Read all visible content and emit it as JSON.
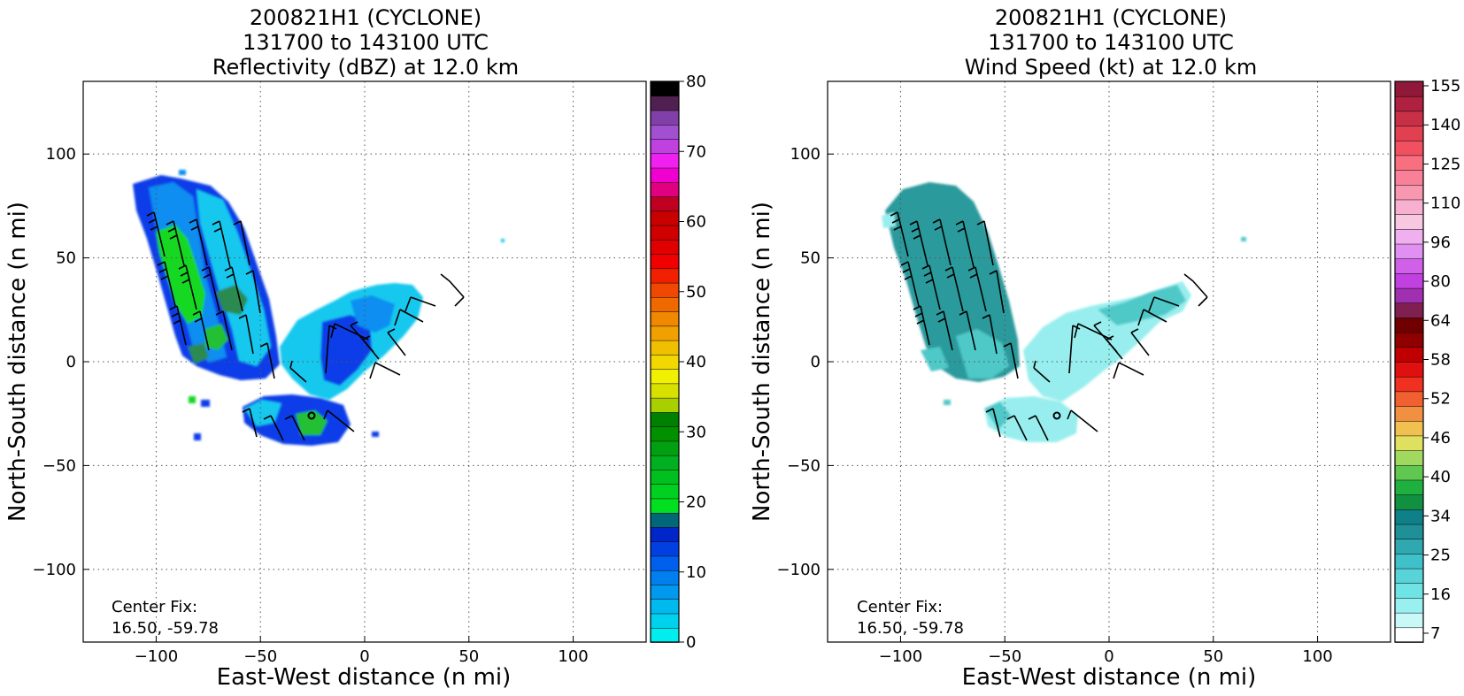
{
  "panels": [
    {
      "title_lines": [
        "200821H1 (CYCLONE)",
        "131700 to 143100 UTC",
        "Reflectivity (dBZ) at 12.0 km"
      ],
      "center_fix_label": "Center Fix:",
      "center_fix_value": "16.50, -59.78",
      "colorbar_ticks": [
        "0",
        "10",
        "20",
        "30",
        "40",
        "50",
        "60",
        "70",
        "80"
      ],
      "colorbar_colors": [
        "#00eeee",
        "#00d2ee",
        "#00b9ee",
        "#0099ee",
        "#0080ee",
        "#0060ee",
        "#0040e0",
        "#0025c8",
        "#006878",
        "#00e020",
        "#00d020",
        "#00c020",
        "#00b020",
        "#00a010",
        "#009000",
        "#008000",
        "#a8d000",
        "#d8e000",
        "#f0f000",
        "#f0d800",
        "#f0c000",
        "#f0a000",
        "#f08800",
        "#f06800",
        "#f04800",
        "#f02000",
        "#f00000",
        "#e00000",
        "#d00000",
        "#c80000",
        "#c00020",
        "#e00080",
        "#f000d0",
        "#f020f0",
        "#c040e0",
        "#a050d0",
        "#8040a8",
        "#502050",
        "#000000"
      ]
    },
    {
      "title_lines": [
        "200821H1 (CYCLONE)",
        "131700 to 143100 UTC",
        "Wind Speed (kt) at 12.0 km"
      ],
      "center_fix_label": "Center Fix:",
      "center_fix_value": "16.50, -59.78",
      "colorbar_ticks": [
        "7",
        "16",
        "25",
        "34",
        "40",
        "46",
        "52",
        "58",
        "64",
        "80",
        "96",
        "110",
        "125",
        "140",
        "155"
      ],
      "colorbar_colors": [
        "#ffffff",
        "#c8f8f8",
        "#98f0f0",
        "#70e4e4",
        "#58d4d8",
        "#40c0c8",
        "#30a8b0",
        "#209098",
        "#108088",
        "#109040",
        "#20b040",
        "#60c850",
        "#a0d860",
        "#e0e060",
        "#f0c050",
        "#f09040",
        "#f06030",
        "#f03020",
        "#e01010",
        "#c00000",
        "#900000",
        "#700000",
        "#802050",
        "#a030b0",
        "#c040e0",
        "#d060e8",
        "#e090f0",
        "#f0b0f0",
        "#f8c8e0",
        "#f8b0d0",
        "#f898b0",
        "#f88098",
        "#f87080",
        "#f05060",
        "#e04050",
        "#c83048",
        "#b02040",
        "#901838"
      ]
    }
  ],
  "chart_data": [
    {
      "type": "heatmap",
      "title": "200821H1 (CYCLONE)\n131700 to 143100 UTC\nReflectivity (dBZ) at 12.0 km",
      "xlabel": "East-West distance (n mi)",
      "ylabel": "North-South distance (n mi)",
      "xlim": [
        -135,
        135
      ],
      "ylim": [
        -135,
        135
      ],
      "xticks": [
        -100,
        -50,
        0,
        50,
        100
      ],
      "yticks": [
        -100,
        -50,
        0,
        50,
        100
      ],
      "grid": true,
      "colorbar": {
        "label": "dBZ",
        "min": 0,
        "max": 80,
        "ticks": [
          0,
          10,
          20,
          30,
          40,
          50,
          60,
          70,
          80
        ]
      },
      "annotation": "Center Fix:\n16.50, -59.78",
      "center_marker": [
        -25,
        -25
      ]
    },
    {
      "type": "heatmap",
      "title": "200821H1 (CYCLONE)\n131700 to 143100 UTC\nWind Speed (kt) at 12.0 km",
      "xlabel": "East-West distance (n mi)",
      "ylabel": "North-South distance (n mi)",
      "xlim": [
        -135,
        135
      ],
      "ylim": [
        -135,
        135
      ],
      "xticks": [
        -100,
        -50,
        0,
        50,
        100
      ],
      "yticks": [
        -100,
        -50,
        0,
        50,
        100
      ],
      "grid": true,
      "colorbar": {
        "label": "kt",
        "ticks": [
          7,
          16,
          25,
          34,
          40,
          46,
          52,
          58,
          64,
          80,
          96,
          110,
          125,
          140,
          155
        ]
      },
      "annotation": "Center Fix:\n16.50, -59.78",
      "center_marker": [
        -25,
        -25
      ]
    }
  ],
  "axis_text": {
    "xlabel": "East-West distance (n mi)",
    "ylabel": "North-South distance (n mi)",
    "tick_labels": [
      "−100",
      "−50",
      "0",
      "50",
      "100"
    ]
  },
  "colors": {
    "refl_blue": "#0a3ee8",
    "refl_midblue": "#0a8ef0",
    "refl_cyan": "#00d8ee",
    "refl_green": "#16d820",
    "refl_darkgreen": "#2a8a50",
    "wind_teal": "#2a9a9c",
    "wind_midteal": "#50c8c8",
    "wind_light": "#98eeee",
    "barb": "#000000"
  }
}
